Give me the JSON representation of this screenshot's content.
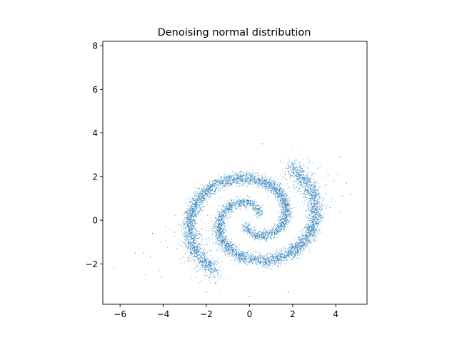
{
  "chart_data": {
    "type": "scatter",
    "title": "Denoising normal distribution",
    "xlabel": "",
    "ylabel": "",
    "xlim": [
      -6.8,
      5.45
    ],
    "ylim": [
      -3.85,
      8.2
    ],
    "xticks": [
      -6,
      -4,
      -2,
      0,
      2,
      4
    ],
    "xtick_labels": [
      "−6",
      "−4",
      "−2",
      "0",
      "2",
      "4"
    ],
    "yticks": [
      -2,
      0,
      2,
      4,
      6,
      8
    ],
    "ytick_labels": [
      "−2",
      "0",
      "2",
      "4",
      "6",
      "8"
    ],
    "grid": false,
    "marker_color": "#1f77b4",
    "description_of_points": "approximately 8000 points forming a two-armed spiral (swiss-roll) centered near (0.1, 0.1), radius growing to ~3.3, with scattered outliers; points generated from the parametric spiral in the script",
    "spiral": {
      "center": [
        0.15,
        0.05
      ],
      "arms": 2,
      "max_radius": 3.35,
      "aspect_y": 0.84,
      "point_count": 8000
    },
    "outliers": [
      [
        -6.3,
        -2.2
      ],
      [
        -5.3,
        -1.5
      ],
      [
        -4.9,
        -1.5
      ],
      [
        -4.8,
        -2.5
      ],
      [
        -4.6,
        -1.7
      ],
      [
        -4.2,
        -2.3
      ],
      [
        -4.1,
        -2.6
      ],
      [
        -4.5,
        -0.6
      ],
      [
        -4.1,
        -1.0
      ],
      [
        -3.9,
        -0.3
      ],
      [
        4.2,
        2.9
      ],
      [
        4.5,
        1.7
      ],
      [
        4.7,
        1.2
      ],
      [
        4.3,
        1.1
      ],
      [
        3.9,
        1.8
      ],
      [
        4.1,
        2.1
      ],
      [
        0.0,
        -3.5
      ],
      [
        -2.0,
        -3.3
      ],
      [
        1.8,
        -3.3
      ],
      [
        0.6,
        3.5
      ],
      [
        -1.6,
        -2.9
      ]
    ]
  }
}
